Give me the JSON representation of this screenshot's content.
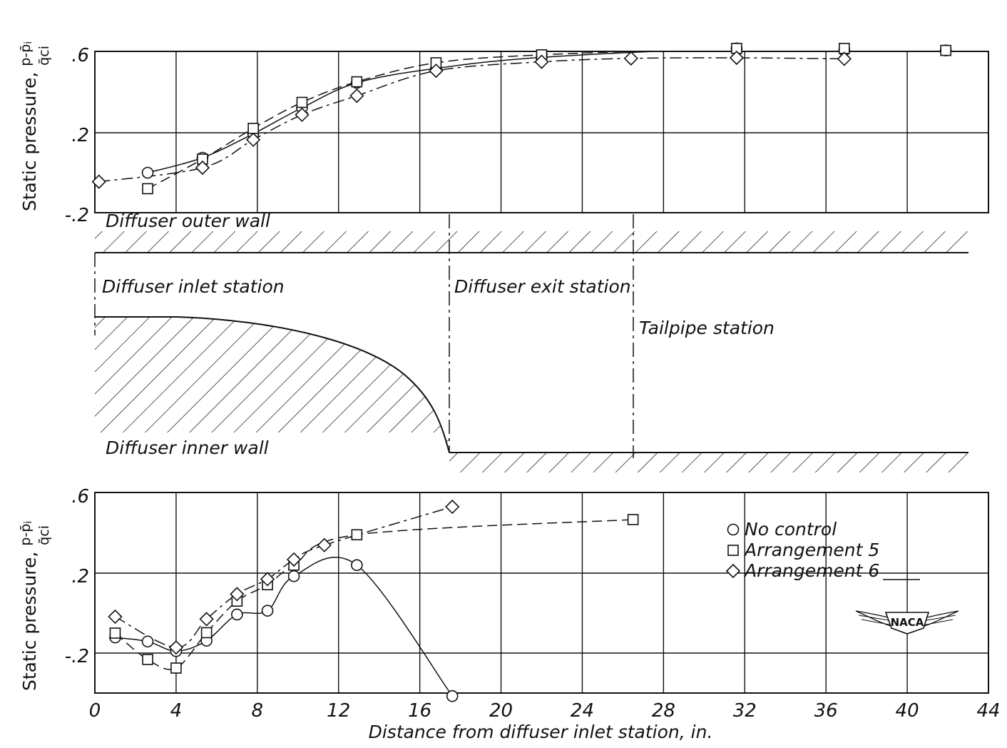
{
  "chart_data": [
    {
      "type": "scatter",
      "panel": "top",
      "ylabel": "Static pressure, p-p̄i / q̄ci",
      "yticks": [
        ".6",
        ".2",
        "-.2"
      ],
      "ylim": [
        -0.2,
        0.6
      ],
      "xlim": [
        0,
        44
      ],
      "grid": true,
      "series": [
        {
          "name": "No control",
          "marker": "circle",
          "x": [
            2.6,
            5.3,
            7.8,
            10.2,
            12.9,
            16.8,
            22.0,
            31.6,
            36.9,
            41.9
          ],
          "y": [
            0.0,
            0.075,
            0.195,
            0.325,
            0.45,
            0.522,
            0.577,
            0.622,
            0.612,
            0.612
          ]
        },
        {
          "name": "Arrangement 5",
          "marker": "square",
          "x": [
            2.6,
            5.3,
            7.8,
            10.2,
            12.9,
            16.8,
            22.0,
            31.6,
            36.9,
            41.9
          ],
          "y": [
            -0.08,
            0.068,
            0.222,
            0.352,
            0.455,
            0.55,
            0.59,
            0.622,
            0.622,
            0.612
          ]
        },
        {
          "name": "Arrangement 6",
          "marker": "diamond",
          "x": [
            0.2,
            5.3,
            7.8,
            10.2,
            12.9,
            16.8,
            22.0,
            26.4,
            31.6,
            36.9
          ],
          "y": [
            -0.045,
            0.025,
            0.165,
            0.29,
            0.385,
            0.51,
            0.555,
            0.572,
            0.575,
            0.57
          ]
        }
      ]
    },
    {
      "type": "scatter",
      "panel": "bottom",
      "ylabel": "Static pressure, p-p̄i / q̄ci",
      "xlabel": "Distance from diffuser inlet station, in.",
      "yticks": [
        ".6",
        ".2",
        "-.2"
      ],
      "xticks": [
        "0",
        "4",
        "8",
        "12",
        "16",
        "20",
        "24",
        "28",
        "32",
        "36",
        "40",
        "44"
      ],
      "ylim": [
        -0.4,
        0.6
      ],
      "xlim": [
        0,
        44
      ],
      "grid": true,
      "legend_position": "right",
      "series": [
        {
          "name": "No control",
          "marker": "circle",
          "x": [
            1.0,
            2.6,
            4.0,
            5.5,
            7.0,
            8.5,
            9.8,
            12.9,
            17.6
          ],
          "y": [
            -0.122,
            -0.142,
            -0.19,
            -0.138,
            -0.007,
            0.012,
            0.185,
            0.24,
            -0.415
          ]
        },
        {
          "name": "Arrangement 5",
          "marker": "square",
          "x": [
            1.0,
            2.6,
            4.0,
            5.5,
            7.0,
            8.5,
            9.8,
            12.9,
            26.5
          ],
          "y": [
            -0.1,
            -0.232,
            -0.275,
            -0.098,
            0.06,
            0.142,
            0.24,
            0.392,
            0.468
          ]
        },
        {
          "name": "Arrangement 6",
          "marker": "diamond",
          "x": [
            1.0,
            4.0,
            5.5,
            7.0,
            8.5,
            9.8,
            11.3,
            17.6
          ],
          "y": [
            -0.018,
            -0.172,
            -0.03,
            0.095,
            0.17,
            0.268,
            0.34,
            0.532
          ]
        }
      ]
    }
  ],
  "legend": {
    "items": [
      {
        "marker": "circle",
        "label": "No control"
      },
      {
        "marker": "square",
        "label": "Arrangement 5"
      },
      {
        "marker": "diamond",
        "label": "Arrangement 6"
      }
    ]
  },
  "diagram": {
    "outer_wall_label": "Diffuser outer wall",
    "inlet_station_label": "Diffuser inlet station",
    "exit_station_label": "Diffuser exit station",
    "tailpipe_station_label": "Tailpipe station",
    "inner_wall_label": "Diffuser inner wall",
    "exit_station_x": 17.5,
    "tailpipe_station_x": 26.5
  },
  "logo_text": "NACA"
}
